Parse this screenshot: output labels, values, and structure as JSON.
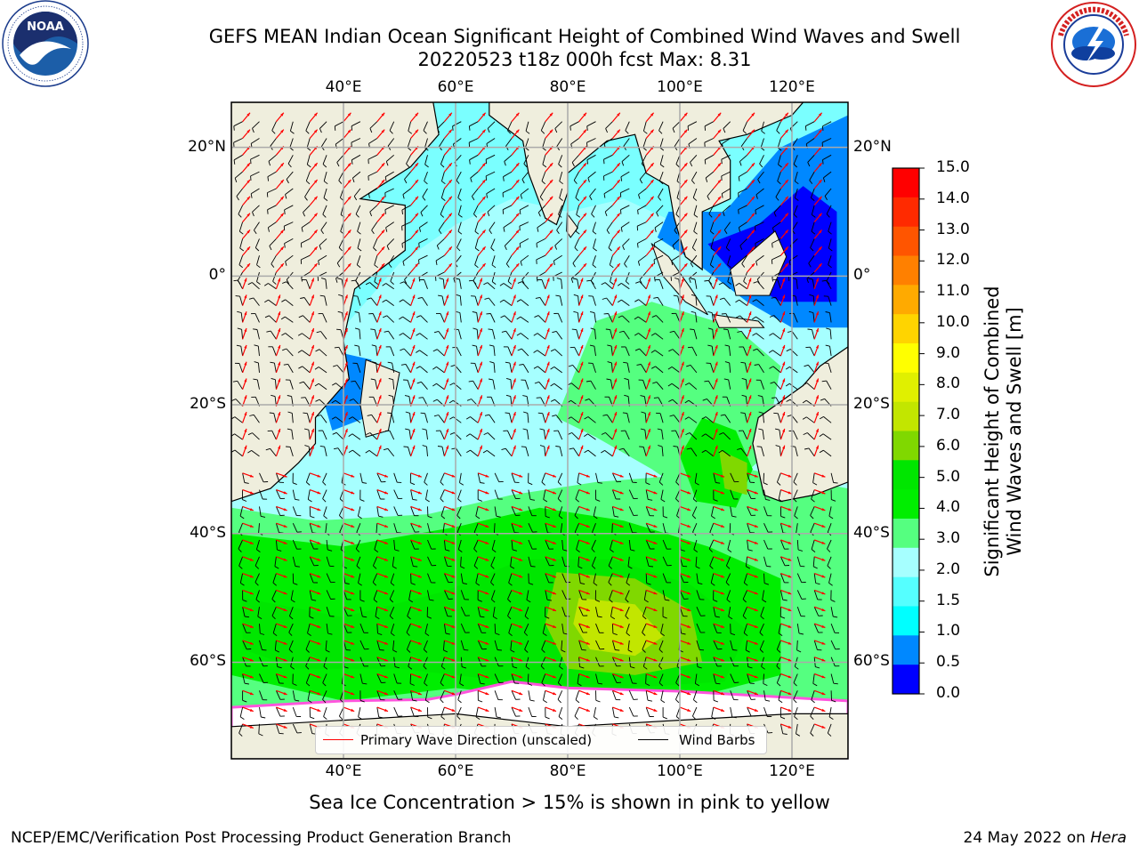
{
  "title": {
    "line1": "GEFS MEAN Indian Ocean Significant Height of Combined Wind Waves and Swell",
    "line2": "20220523 t18z 000h fcst   Max: 8.31"
  },
  "logos": {
    "left": "noaa-logo",
    "right": "nws-logo",
    "noaa_text": "NOAA",
    "nws_text": "NATIONAL WEATHER SERVICE"
  },
  "map": {
    "lon_ticks_top": [
      "40°E",
      "60°E",
      "80°E",
      "100°E",
      "120°E"
    ],
    "lon_ticks_bottom": [
      "40°E",
      "60°E",
      "80°E",
      "100°E",
      "120°E"
    ],
    "lat_ticks_left": [
      "20°N",
      "0°",
      "20°S",
      "40°S",
      "60°S"
    ],
    "lat_ticks_right": [
      "20°N",
      "0°",
      "20°S",
      "40°S",
      "60°S"
    ],
    "lon_range": [
      20,
      130
    ],
    "lat_range": [
      -75,
      27
    ],
    "land_color": "#efeedd",
    "sea_ice_color": "#ffffff"
  },
  "colorbar": {
    "label_line1": "Significant Height of Combined",
    "label_line2": "Wind Waves and Swell [m]",
    "ticks": [
      "15.0",
      "14.0",
      "13.0",
      "12.0",
      "11.0",
      "10.0",
      "9.0",
      "8.0",
      "7.0",
      "6.0",
      "5.0",
      "4.0",
      "3.0",
      "2.0",
      "1.5",
      "1.0",
      "0.5",
      "0.0"
    ],
    "colors_top_to_bottom": [
      "#ff0000",
      "#ff2a00",
      "#ff5500",
      "#ff8000",
      "#ffaa00",
      "#ffd400",
      "#ffff00",
      "#e0f000",
      "#c2e600",
      "#80d800",
      "#00e600",
      "#00ee00",
      "#55ff80",
      "#a6ffff",
      "#55ffff",
      "#00ffff",
      "#0088ff",
      "#0000ff"
    ]
  },
  "legend": {
    "primary_wave_label": "Primary Wave Direction (unscaled)",
    "primary_wave_color": "#ff0000",
    "wind_barbs_label": "Wind Barbs",
    "wind_barbs_color": "#000000"
  },
  "note": "Sea Ice Concentration > 15% is shown in pink to yellow",
  "footer": {
    "left": "NCEP/EMC/Verification Post Processing Product Generation Branch",
    "date": "24 May 2022 on ",
    "machine": "Hera"
  }
}
